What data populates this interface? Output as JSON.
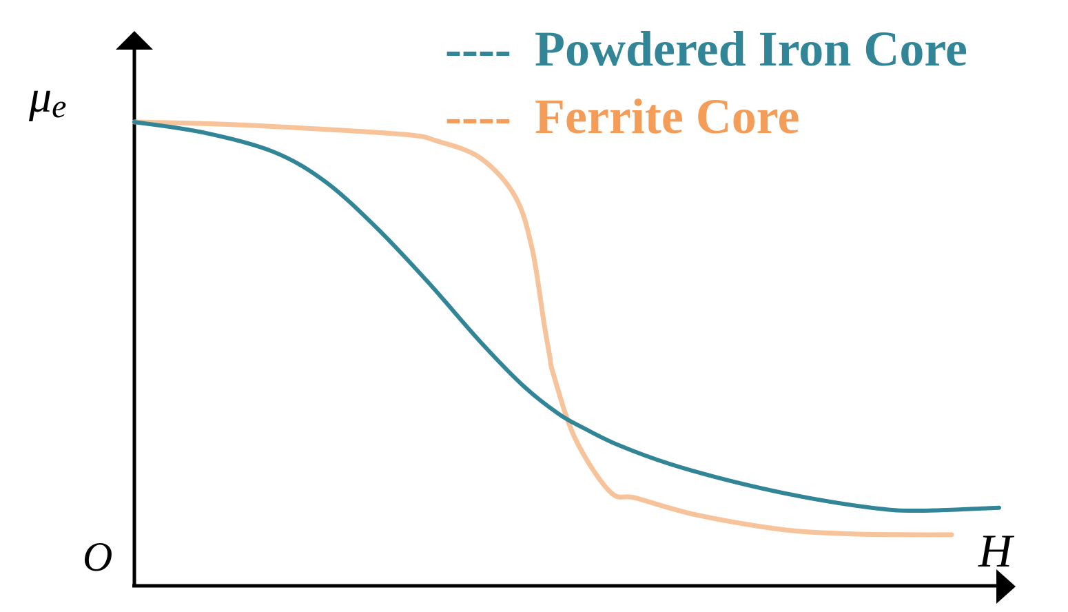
{
  "chart_data": {
    "type": "line",
    "title": "",
    "xlabel": "H",
    "ylabel": "μ",
    "ylabel_subscript": "e",
    "origin_label": "O",
    "xlim": [
      0,
      100
    ],
    "ylim": [
      0,
      100
    ],
    "ticks": false,
    "grid": false,
    "legend_position": "top-right",
    "legend_marker": "----",
    "series": [
      {
        "name": "Powdered Iron Core",
        "color": "#318596",
        "x": [
          0,
          8,
          16,
          22,
          28,
          34,
          40,
          45,
          49,
          52,
          56,
          62,
          70,
          78,
          86,
          91,
          100
        ],
        "y": [
          100,
          97.5,
          93,
          86,
          75,
          62,
          48,
          37.5,
          31,
          27.5,
          23.5,
          19,
          14.5,
          11,
          8.5,
          8,
          8.7
        ]
      },
      {
        "name": "Ferrite Core",
        "color": "#F6C39A",
        "x": [
          0,
          10,
          20,
          31.5,
          35,
          40,
          44,
          46,
          47.4,
          48,
          48.5,
          51,
          55,
          58,
          65,
          75,
          83,
          90,
          94.5
        ],
        "y": [
          100,
          99.5,
          98.5,
          97,
          95.5,
          91.5,
          82.5,
          70,
          52,
          45,
          40,
          25,
          12.5,
          11,
          7,
          3.5,
          2.5,
          2.3,
          2.3
        ]
      }
    ]
  }
}
